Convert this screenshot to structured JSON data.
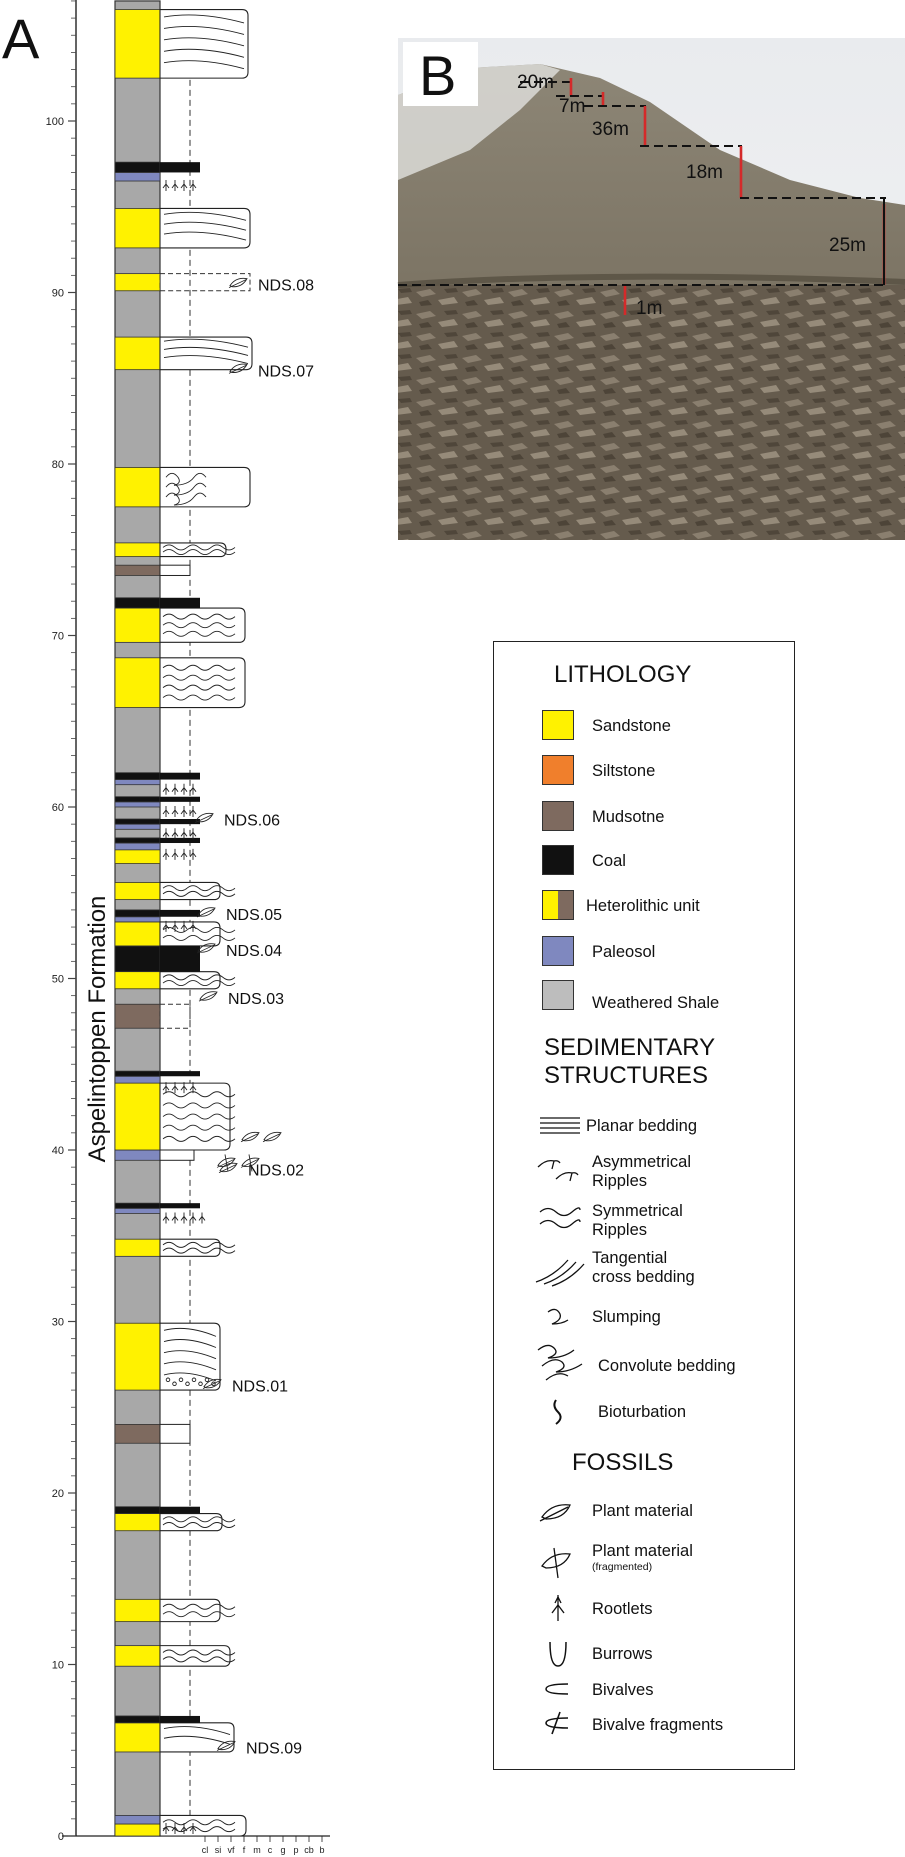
{
  "panels": {
    "a": "A",
    "b": "B"
  },
  "log": {
    "formation_label": "Aspelintoppen Formation",
    "axis_ticks": [
      "0",
      "10",
      "20",
      "30",
      "40",
      "50",
      "60",
      "70",
      "80",
      "90",
      "100"
    ],
    "grain_scale": [
      "cl",
      "si",
      "vf",
      "f",
      "m",
      "c",
      "g",
      "p",
      "cb",
      "b"
    ],
    "samples": [
      "NDS.08",
      "NDS.07",
      "NDS.06",
      "NDS.05",
      "NDS.04",
      "NDS.03",
      "NDS.02",
      "NDS.01",
      "NDS.09"
    ]
  },
  "photo": {
    "thickness_labels": [
      "20m",
      "7m",
      "36m",
      "18m",
      "25m",
      "1m"
    ]
  },
  "legend": {
    "lithology_title": "LITHOLOGY",
    "lithology": [
      {
        "label": "Sandstone",
        "color": "#fff200"
      },
      {
        "label": "Siltstone",
        "color": "#f07f2c"
      },
      {
        "label": "Mudsotne",
        "color": "#7e6a5f"
      },
      {
        "label": "Coal",
        "color": "#111111"
      },
      {
        "label": "Heterolithic unit",
        "color": "#fff200"
      },
      {
        "label": "Paleosol",
        "color": "#7f88bf"
      },
      {
        "label": "Weathered Shale",
        "color": "#bdbdbd"
      }
    ],
    "structures_title_1": "SEDIMENTARY",
    "structures_title_2": "STRUCTURES",
    "structures": [
      {
        "label": "Planar bedding",
        "icon": "planar-bedding-icon"
      },
      {
        "label_1": "Asymmetrical",
        "label_2": "Ripples",
        "icon": "asymmetrical-ripples-icon"
      },
      {
        "label_1": "Symmetrical",
        "label_2": "Ripples",
        "icon": "symmetrical-ripples-icon"
      },
      {
        "label_1": "Tangential",
        "label_2": "cross bedding",
        "icon": "tangential-cross-bedding-icon"
      },
      {
        "label": "Slumping",
        "icon": "slumping-icon"
      },
      {
        "label": "Convolute bedding",
        "icon": "convolute-bedding-icon"
      },
      {
        "label": "Bioturbation",
        "icon": "bioturbation-icon"
      }
    ],
    "fossils_title": "FOSSILS",
    "fossils": [
      {
        "label": "Plant material",
        "icon": "plant-material-icon"
      },
      {
        "label": "Plant material",
        "note": "(fragmented)",
        "icon": "plant-fragment-icon"
      },
      {
        "label": "Rootlets",
        "icon": "rootlets-icon"
      },
      {
        "label": "Burrows",
        "icon": "burrows-icon"
      },
      {
        "label": "Bivalves",
        "icon": "bivalves-icon"
      },
      {
        "label": "Bivalve fragments",
        "icon": "bivalve-fragments-icon"
      }
    ]
  },
  "colors": {
    "sandstone": "#fff200",
    "shale": "#a8a8a8",
    "mudstone": "#7e6a5f",
    "coal": "#111111",
    "paleosol": "#7f88bf",
    "marker": "#d42a2a"
  }
}
